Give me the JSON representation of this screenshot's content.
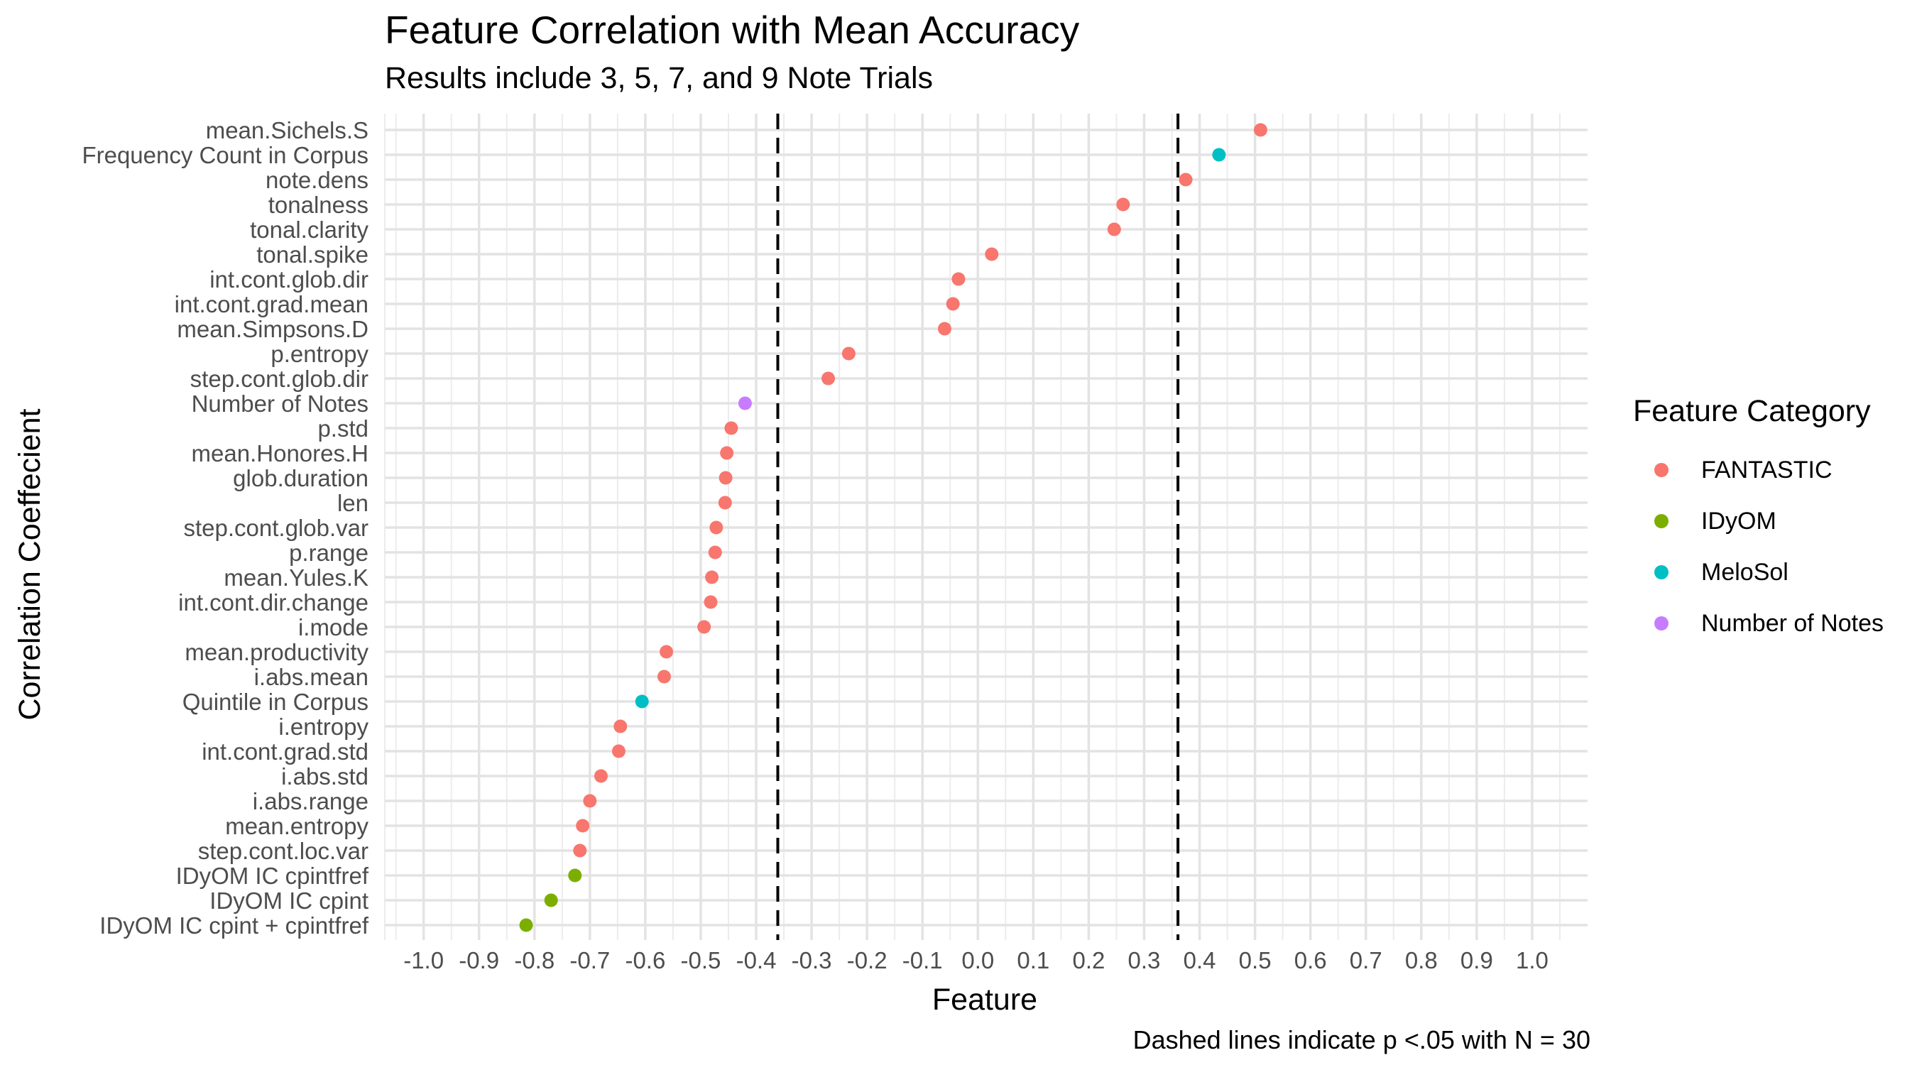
{
  "chart_data": {
    "type": "scatter",
    "title": "Feature Correlation with Mean Accuracy",
    "subtitle": "Results include 3, 5, 7, and 9 Note Trials",
    "xlabel": "Feature",
    "ylabel": "Correlation Coeffecient",
    "caption": "Dashed lines indicate p <.05 with N = 30",
    "xlim": [
      -1.07,
      1.1
    ],
    "x_ticks": [
      -1.0,
      -0.9,
      -0.8,
      -0.7,
      -0.6,
      -0.5,
      -0.4,
      -0.3,
      -0.2,
      -0.1,
      0.0,
      0.1,
      0.2,
      0.3,
      0.4,
      0.5,
      0.6,
      0.7,
      0.8,
      0.9,
      1.0
    ],
    "x_tick_labels": [
      "-1.0",
      "-0.9",
      "-0.8",
      "-0.7",
      "-0.6",
      "-0.5",
      "-0.4",
      "-0.3",
      "-0.2",
      "-0.1",
      "0.0",
      "0.1",
      "0.2",
      "0.3",
      "0.4",
      "0.5",
      "0.6",
      "0.7",
      "0.8",
      "0.9",
      "1.0"
    ],
    "reference_lines": [
      -0.361,
      0.361
    ],
    "grid": true,
    "legend_position": "right",
    "legend_title": "Feature Category",
    "categories_legend": [
      {
        "name": "FANTASTIC",
        "color": "#F8766D"
      },
      {
        "name": "IDyOM",
        "color": "#7CAE00"
      },
      {
        "name": "MeloSol",
        "color": "#00BFC4"
      },
      {
        "name": "Number of Notes",
        "color": "#C77CFF"
      }
    ],
    "points": [
      {
        "feature": "mean.Sichels.S",
        "value": 0.51,
        "category": "FANTASTIC"
      },
      {
        "feature": "Frequency Count in Corpus",
        "value": 0.435,
        "category": "MeloSol"
      },
      {
        "feature": "note.dens",
        "value": 0.375,
        "category": "FANTASTIC"
      },
      {
        "feature": "tonalness",
        "value": 0.262,
        "category": "FANTASTIC"
      },
      {
        "feature": "tonal.clarity",
        "value": 0.246,
        "category": "FANTASTIC"
      },
      {
        "feature": "tonal.spike",
        "value": 0.025,
        "category": "FANTASTIC"
      },
      {
        "feature": "int.cont.glob.dir",
        "value": -0.035,
        "category": "FANTASTIC"
      },
      {
        "feature": "int.cont.grad.mean",
        "value": -0.045,
        "category": "FANTASTIC"
      },
      {
        "feature": "mean.Simpsons.D",
        "value": -0.06,
        "category": "FANTASTIC"
      },
      {
        "feature": "p.entropy",
        "value": -0.233,
        "category": "FANTASTIC"
      },
      {
        "feature": "step.cont.glob.dir",
        "value": -0.27,
        "category": "FANTASTIC"
      },
      {
        "feature": "Number of Notes",
        "value": -0.42,
        "category": "Number of Notes"
      },
      {
        "feature": "p.std",
        "value": -0.445,
        "category": "FANTASTIC"
      },
      {
        "feature": "mean.Honores.H",
        "value": -0.453,
        "category": "FANTASTIC"
      },
      {
        "feature": "glob.duration",
        "value": -0.455,
        "category": "FANTASTIC"
      },
      {
        "feature": "len",
        "value": -0.456,
        "category": "FANTASTIC"
      },
      {
        "feature": "step.cont.glob.var",
        "value": -0.472,
        "category": "FANTASTIC"
      },
      {
        "feature": "p.range",
        "value": -0.474,
        "category": "FANTASTIC"
      },
      {
        "feature": "mean.Yules.K",
        "value": -0.48,
        "category": "FANTASTIC"
      },
      {
        "feature": "int.cont.dir.change",
        "value": -0.482,
        "category": "FANTASTIC"
      },
      {
        "feature": "i.mode",
        "value": -0.494,
        "category": "FANTASTIC"
      },
      {
        "feature": "mean.productivity",
        "value": -0.562,
        "category": "FANTASTIC"
      },
      {
        "feature": "i.abs.mean",
        "value": -0.566,
        "category": "FANTASTIC"
      },
      {
        "feature": "Quintile in Corpus",
        "value": -0.606,
        "category": "MeloSol"
      },
      {
        "feature": "i.entropy",
        "value": -0.645,
        "category": "FANTASTIC"
      },
      {
        "feature": "int.cont.grad.std",
        "value": -0.648,
        "category": "FANTASTIC"
      },
      {
        "feature": "i.abs.std",
        "value": -0.68,
        "category": "FANTASTIC"
      },
      {
        "feature": "i.abs.range",
        "value": -0.7,
        "category": "FANTASTIC"
      },
      {
        "feature": "mean.entropy",
        "value": -0.713,
        "category": "FANTASTIC"
      },
      {
        "feature": "step.cont.loc.var",
        "value": -0.718,
        "category": "FANTASTIC"
      },
      {
        "feature": "IDyOM IC cpintfref",
        "value": -0.727,
        "category": "IDyOM"
      },
      {
        "feature": "IDyOM IC cpint",
        "value": -0.77,
        "category": "IDyOM"
      },
      {
        "feature": "IDyOM IC cpint + cpintfref",
        "value": -0.815,
        "category": "IDyOM"
      }
    ]
  }
}
